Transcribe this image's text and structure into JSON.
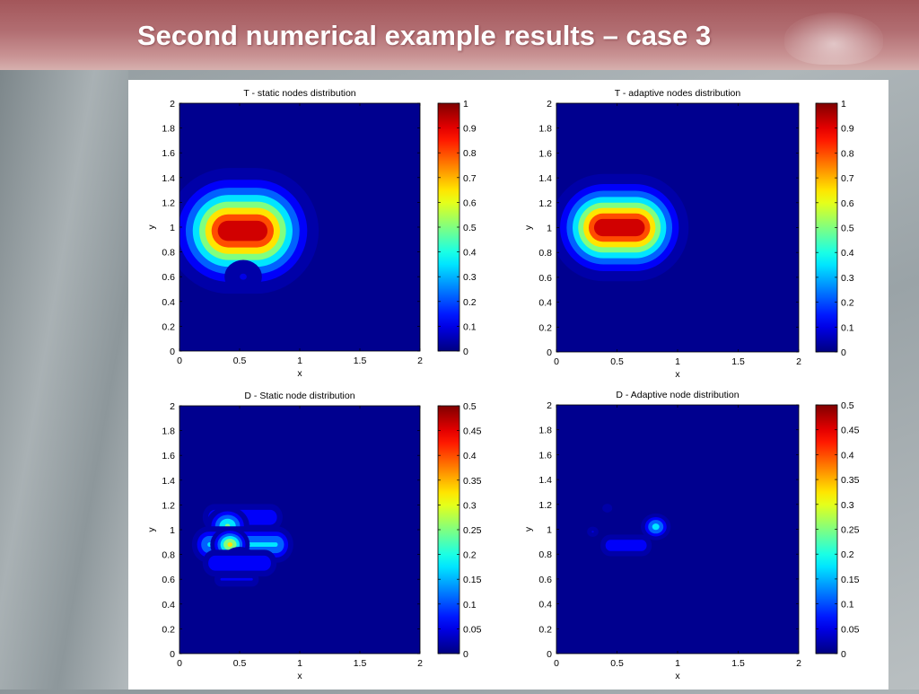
{
  "slide": {
    "title": "Second numerical example results – case 3"
  },
  "chart_data": [
    {
      "type": "heatmap",
      "title": "T - static nodes distribution",
      "xlabel": "x",
      "ylabel": "y",
      "xlim": [
        0,
        2
      ],
      "ylim": [
        0,
        2
      ],
      "xticks": [
        "0",
        "0.5",
        "1",
        "1.5",
        "2"
      ],
      "yticks": [
        "0",
        "0.2",
        "0.4",
        "0.6",
        "0.8",
        "1",
        "1.2",
        "1.4",
        "1.6",
        "1.8",
        "2"
      ],
      "colorbar": {
        "min": 0,
        "max": 1,
        "ticks": [
          "0",
          "0.1",
          "0.2",
          "0.3",
          "0.4",
          "0.5",
          "0.6",
          "0.7",
          "0.8",
          "0.9",
          "1"
        ]
      },
      "colormap": "jet",
      "grid": false,
      "features": [
        {
          "shape": "capsule",
          "x_range": [
            0.4,
            0.65
          ],
          "y": 0.97,
          "peak": 1.0,
          "spread": 0.2
        },
        {
          "shape": "blob",
          "x": 0.53,
          "y": 0.6,
          "peak": 0.1,
          "spread": 0.1
        }
      ]
    },
    {
      "type": "heatmap",
      "title": "T - adaptive nodes distribution",
      "xlabel": "x",
      "ylabel": "y",
      "xlim": [
        0,
        2
      ],
      "ylim": [
        0,
        2
      ],
      "xticks": [
        "0",
        "0.5",
        "1",
        "1.5",
        "2"
      ],
      "yticks": [
        "0",
        "0.2",
        "0.4",
        "0.6",
        "0.8",
        "1",
        "1.2",
        "1.4",
        "1.6",
        "1.8",
        "2"
      ],
      "colorbar": {
        "min": 0,
        "max": 1,
        "ticks": [
          "0",
          "0.1",
          "0.2",
          "0.3",
          "0.4",
          "0.5",
          "0.6",
          "0.7",
          "0.8",
          "0.9",
          "1"
        ]
      },
      "colormap": "jet",
      "grid": false,
      "features": [
        {
          "shape": "capsule",
          "x_range": [
            0.38,
            0.66
          ],
          "y": 1.0,
          "peak": 1.0,
          "spread": 0.17
        }
      ]
    },
    {
      "type": "heatmap",
      "title": "D - Static node distribution",
      "xlabel": "x",
      "ylabel": "y",
      "xlim": [
        0,
        2
      ],
      "ylim": [
        0,
        2
      ],
      "xticks": [
        "0",
        "0.5",
        "1",
        "1.5",
        "2"
      ],
      "yticks": [
        "0",
        "0.2",
        "0.4",
        "0.6",
        "0.8",
        "1",
        "1.2",
        "1.4",
        "1.6",
        "1.8",
        "2"
      ],
      "colorbar": {
        "min": 0,
        "max": 0.5,
        "ticks": [
          "0",
          "0.05",
          "0.1",
          "0.15",
          "0.2",
          "0.25",
          "0.3",
          "0.35",
          "0.4",
          "0.45",
          "0.5"
        ]
      },
      "colormap": "jet",
      "grid": false,
      "features": [
        {
          "shape": "band",
          "x_range": [
            0.3,
            0.75
          ],
          "y": 1.1,
          "peak": 0.1,
          "spread": 0.06
        },
        {
          "shape": "blob",
          "x": 0.4,
          "y": 1.03,
          "peak": 0.25,
          "spread": 0.07
        },
        {
          "shape": "band",
          "x_range": [
            0.25,
            0.8
          ],
          "y": 0.88,
          "peak": 0.18,
          "spread": 0.07
        },
        {
          "shape": "blob",
          "x": 0.42,
          "y": 0.88,
          "peak": 0.34,
          "spread": 0.06
        },
        {
          "shape": "blob",
          "x": 0.5,
          "y": 0.73,
          "peak": 0.23,
          "spread": 0.06
        },
        {
          "shape": "band",
          "x_range": [
            0.3,
            0.7
          ],
          "y": 0.73,
          "peak": 0.1,
          "spread": 0.06
        },
        {
          "shape": "band",
          "x_range": [
            0.35,
            0.6
          ],
          "y": 0.6,
          "peak": 0.06,
          "spread": 0.04
        }
      ]
    },
    {
      "type": "heatmap",
      "title": "D - Adaptive node distribution",
      "xlabel": "x",
      "ylabel": "y",
      "xlim": [
        0,
        2
      ],
      "ylim": [
        0,
        2
      ],
      "xticks": [
        "0",
        "0.5",
        "1",
        "1.5",
        "2"
      ],
      "yticks": [
        "0",
        "0.2",
        "0.4",
        "0.6",
        "0.8",
        "1",
        "1.2",
        "1.4",
        "1.6",
        "1.8",
        "2"
      ],
      "colorbar": {
        "min": 0,
        "max": 0.5,
        "ticks": [
          "0",
          "0.05",
          "0.1",
          "0.15",
          "0.2",
          "0.25",
          "0.3",
          "0.35",
          "0.4",
          "0.45",
          "0.5"
        ]
      },
      "colormap": "jet",
      "grid": false,
      "features": [
        {
          "shape": "blob",
          "x": 0.82,
          "y": 1.02,
          "peak": 0.2,
          "spread": 0.05
        },
        {
          "shape": "band",
          "x_range": [
            0.45,
            0.7
          ],
          "y": 0.87,
          "peak": 0.09,
          "spread": 0.05
        },
        {
          "shape": "blob",
          "x": 0.3,
          "y": 0.98,
          "peak": 0.05,
          "spread": 0.03
        },
        {
          "shape": "blob",
          "x": 0.42,
          "y": 1.17,
          "peak": 0.04,
          "spread": 0.03
        }
      ]
    }
  ]
}
